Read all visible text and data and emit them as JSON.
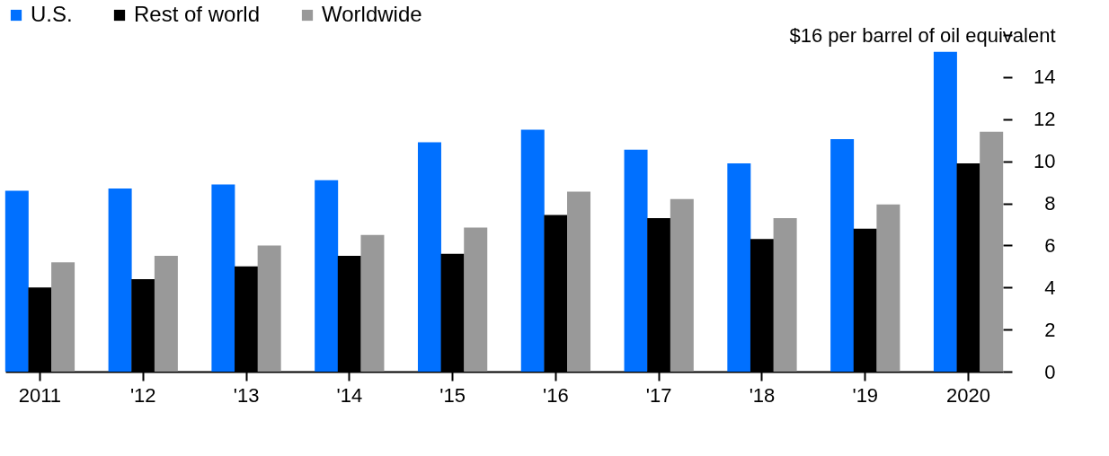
{
  "chart_data": {
    "type": "bar",
    "categories": [
      "2011",
      "'12",
      "'13",
      "'14",
      "'15",
      "'16",
      "'17",
      "'18",
      "'19",
      "2020"
    ],
    "series": [
      {
        "name": "U.S.",
        "color": "#0070ff",
        "values": [
          8.6,
          8.7,
          8.9,
          9.1,
          10.9,
          11.5,
          10.55,
          9.9,
          11.05,
          15.2
        ]
      },
      {
        "name": "Rest of world",
        "color": "#000000",
        "values": [
          4.0,
          4.4,
          5.0,
          5.5,
          5.6,
          7.45,
          7.3,
          6.3,
          6.8,
          9.9
        ]
      },
      {
        "name": "Worldwide",
        "color": "#999999",
        "values": [
          5.2,
          5.5,
          6.0,
          6.5,
          6.85,
          8.55,
          8.2,
          7.3,
          7.95,
          11.4
        ]
      }
    ],
    "ylim": [
      0,
      16
    ],
    "yticks": [
      0,
      2,
      4,
      6,
      8,
      10,
      12,
      14,
      {
        "value": 16,
        "label": "$16 per barrel of oil equivalent"
      }
    ],
    "grid": false,
    "legend": "top left"
  }
}
